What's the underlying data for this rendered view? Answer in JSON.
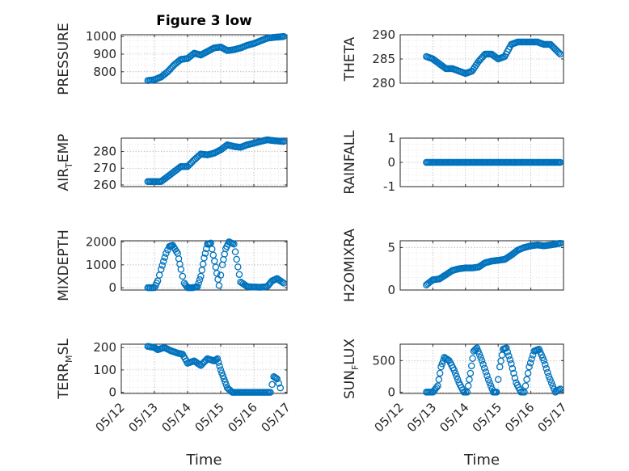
{
  "chart_data": [
    {
      "type": "scatter",
      "id": "pressure",
      "title": "Figure 3 low",
      "ylabel": "PRESSURE",
      "ylim": [
        735,
        1010
      ],
      "yticks": [
        800,
        900,
        1000
      ],
      "xlim": [
        0,
        5
      ],
      "show_xticks": false,
      "x": [
        0.8,
        1.0,
        1.2,
        1.4,
        1.6,
        1.8,
        2.0,
        2.2,
        2.4,
        2.6,
        2.8,
        3.0,
        3.2,
        3.4,
        3.6,
        3.8,
        4.0,
        4.2,
        4.4,
        4.6,
        4.9
      ],
      "y": [
        750,
        755,
        770,
        800,
        840,
        870,
        875,
        905,
        895,
        915,
        935,
        940,
        920,
        925,
        935,
        950,
        960,
        975,
        990,
        995,
        1000
      ]
    },
    {
      "type": "scatter",
      "id": "theta",
      "title": "",
      "ylabel": "THETA",
      "ylim": [
        280,
        290
      ],
      "yticks": [
        280,
        285,
        290
      ],
      "xlim": [
        0,
        5
      ],
      "show_xticks": false,
      "x": [
        0.8,
        1.0,
        1.2,
        1.4,
        1.6,
        1.8,
        2.0,
        2.2,
        2.4,
        2.6,
        2.8,
        3.0,
        3.2,
        3.4,
        3.6,
        3.8,
        4.0,
        4.2,
        4.4,
        4.6,
        4.9
      ],
      "y": [
        285.5,
        285,
        284,
        283,
        283,
        282.5,
        282,
        282.5,
        284.5,
        286,
        286,
        285,
        285.5,
        288,
        288.5,
        288.5,
        288.5,
        288.5,
        288,
        288,
        286
      ]
    },
    {
      "type": "scatter",
      "id": "airtemp",
      "title": "",
      "ylabel": "AIR",
      "ylabel_sub": "T",
      "ylabel_rest": "EMP",
      "ylim": [
        259,
        288
      ],
      "yticks": [
        260,
        270,
        280
      ],
      "xlim": [
        0,
        5
      ],
      "show_xticks": false,
      "x": [
        0.8,
        1.0,
        1.2,
        1.4,
        1.6,
        1.8,
        2.0,
        2.2,
        2.4,
        2.6,
        2.8,
        3.0,
        3.2,
        3.4,
        3.6,
        3.8,
        4.0,
        4.2,
        4.4,
        4.6,
        4.9
      ],
      "y": [
        262,
        262,
        262,
        265,
        268,
        271,
        271,
        275,
        278.5,
        278,
        279,
        281,
        284,
        283,
        282.5,
        284,
        285,
        286,
        287,
        286.5,
        286
      ]
    },
    {
      "type": "scatter",
      "id": "rainfall",
      "title": "",
      "ylabel": "RAINFALL",
      "ylim": [
        -1,
        1
      ],
      "yticks": [
        -1,
        0,
        1
      ],
      "xlim": [
        0,
        5
      ],
      "show_xticks": false,
      "x": [
        0.8,
        1.0,
        1.2,
        1.4,
        1.6,
        1.8,
        2.0,
        2.2,
        2.4,
        2.6,
        2.8,
        3.0,
        3.2,
        3.4,
        3.6,
        3.8,
        4.0,
        4.2,
        4.4,
        4.6,
        4.9
      ],
      "y": [
        0,
        0,
        0,
        0,
        0,
        0,
        0,
        0,
        0,
        0,
        0,
        0,
        0,
        0,
        0,
        0,
        0,
        0,
        0,
        0,
        0
      ]
    },
    {
      "type": "scatter",
      "id": "mixdepth",
      "title": "",
      "ylabel": "MIXDEPTH",
      "ylim": [
        -100,
        2050
      ],
      "yticks": [
        0,
        1000,
        2000
      ],
      "xlim": [
        0,
        5
      ],
      "show_xticks": false,
      "x": [
        0.8,
        1.0,
        1.1,
        1.2,
        1.35,
        1.45,
        1.55,
        1.7,
        1.8,
        1.9,
        2.0,
        2.15,
        2.3,
        2.4,
        2.5,
        2.6,
        2.7,
        2.85,
        2.95,
        3.05,
        3.15,
        3.25,
        3.4,
        3.6,
        3.8,
        4.0,
        4.2,
        4.4,
        4.55,
        4.7,
        4.9
      ],
      "y": [
        0,
        0,
        300,
        800,
        1500,
        1800,
        1850,
        1500,
        800,
        200,
        0,
        0,
        50,
        500,
        1300,
        1900,
        1950,
        900,
        100,
        1000,
        1700,
        2000,
        1900,
        250,
        50,
        30,
        20,
        50,
        300,
        400,
        200
      ]
    },
    {
      "type": "scatter",
      "id": "h2omixra",
      "title": "",
      "ylabel": "H2OMIXRA",
      "ylim": [
        0,
        5.8
      ],
      "yticks": [
        0,
        5
      ],
      "xlim": [
        0,
        5
      ],
      "show_xticks": false,
      "x": [
        0.8,
        1.0,
        1.2,
        1.4,
        1.6,
        1.8,
        2.0,
        2.2,
        2.4,
        2.6,
        2.8,
        3.0,
        3.2,
        3.4,
        3.6,
        3.8,
        4.0,
        4.2,
        4.4,
        4.6,
        4.9
      ],
      "y": [
        0.6,
        1.2,
        1.3,
        1.8,
        2.3,
        2.5,
        2.6,
        2.6,
        2.7,
        3.2,
        3.4,
        3.5,
        3.6,
        4.1,
        4.7,
        5.0,
        5.2,
        5.3,
        5.2,
        5.3,
        5.5
      ]
    },
    {
      "type": "scatter",
      "id": "terrmsl",
      "title": "",
      "ylabel": "TERR",
      "ylabel_sub": "M",
      "ylabel_rest": "SL",
      "ylim": [
        -5,
        215
      ],
      "yticks": [
        0,
        100,
        200
      ],
      "xlim": [
        0,
        5
      ],
      "show_xticks": true,
      "xlabel": "Time",
      "xticks": [
        "05/12",
        "05/13",
        "05/14",
        "05/15",
        "05/16",
        "05/17"
      ],
      "x": [
        0.8,
        1.0,
        1.1,
        1.3,
        1.5,
        1.7,
        1.85,
        2.0,
        2.2,
        2.4,
        2.6,
        2.8,
        2.9,
        3.0,
        3.1,
        3.2,
        3.35,
        3.5,
        3.7,
        3.9,
        4.1,
        4.3,
        4.5,
        4.6,
        4.7,
        4.8
      ],
      "y": [
        205,
        200,
        190,
        200,
        185,
        175,
        170,
        130,
        140,
        120,
        150,
        140,
        150,
        100,
        60,
        20,
        0,
        0,
        0,
        0,
        0,
        0,
        0,
        70,
        60,
        20
      ]
    },
    {
      "type": "scatter",
      "id": "sunflux",
      "title": "",
      "ylabel": "SUN",
      "ylabel_sub": "F",
      "ylabel_rest": "LUX",
      "ylim": [
        -20,
        760
      ],
      "yticks": [
        0,
        500
      ],
      "xlim": [
        0,
        5
      ],
      "show_xticks": true,
      "xlabel": "Time",
      "xticks": [
        "05/12",
        "05/13",
        "05/14",
        "05/15",
        "05/16",
        "05/17"
      ],
      "x": [
        0.8,
        1.0,
        1.15,
        1.25,
        1.35,
        1.5,
        1.65,
        1.8,
        1.95,
        2.05,
        2.15,
        2.25,
        2.35,
        2.5,
        2.7,
        2.85,
        2.95,
        3.05,
        3.15,
        3.25,
        3.4,
        3.55,
        3.7,
        3.8,
        3.95,
        4.1,
        4.25,
        4.4,
        4.55,
        4.75,
        4.9
      ],
      "y": [
        0,
        0,
        100,
        400,
        550,
        500,
        350,
        150,
        0,
        0,
        300,
        650,
        700,
        500,
        200,
        0,
        0,
        400,
        680,
        700,
        450,
        150,
        0,
        0,
        400,
        650,
        680,
        500,
        250,
        0,
        50
      ]
    }
  ],
  "colors": {
    "marker": "#0072BD",
    "axis": "#262626",
    "grid": "#b0b0b0"
  }
}
